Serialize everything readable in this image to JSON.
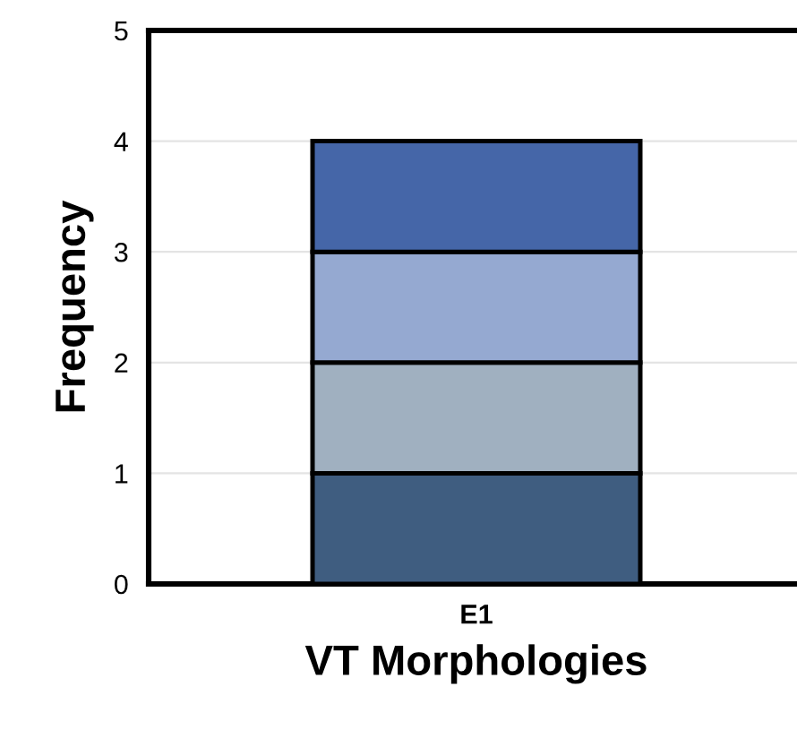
{
  "chart_data": {
    "type": "bar",
    "xlabel": "VT Morphologies",
    "ylabel": "Frequency",
    "categories": [
      "E1"
    ],
    "stacked": true,
    "series": [
      {
        "color": "#3f5d80",
        "values": [
          1
        ]
      },
      {
        "color": "#a0b0c0",
        "values": [
          1
        ]
      },
      {
        "color": "#95a9d1",
        "values": [
          1
        ]
      },
      {
        "color": "#4566a8",
        "values": [
          1
        ]
      }
    ],
    "ylim": [
      0,
      5
    ],
    "yticks": [
      0,
      1,
      2,
      3,
      4,
      5
    ],
    "grid": "y"
  }
}
